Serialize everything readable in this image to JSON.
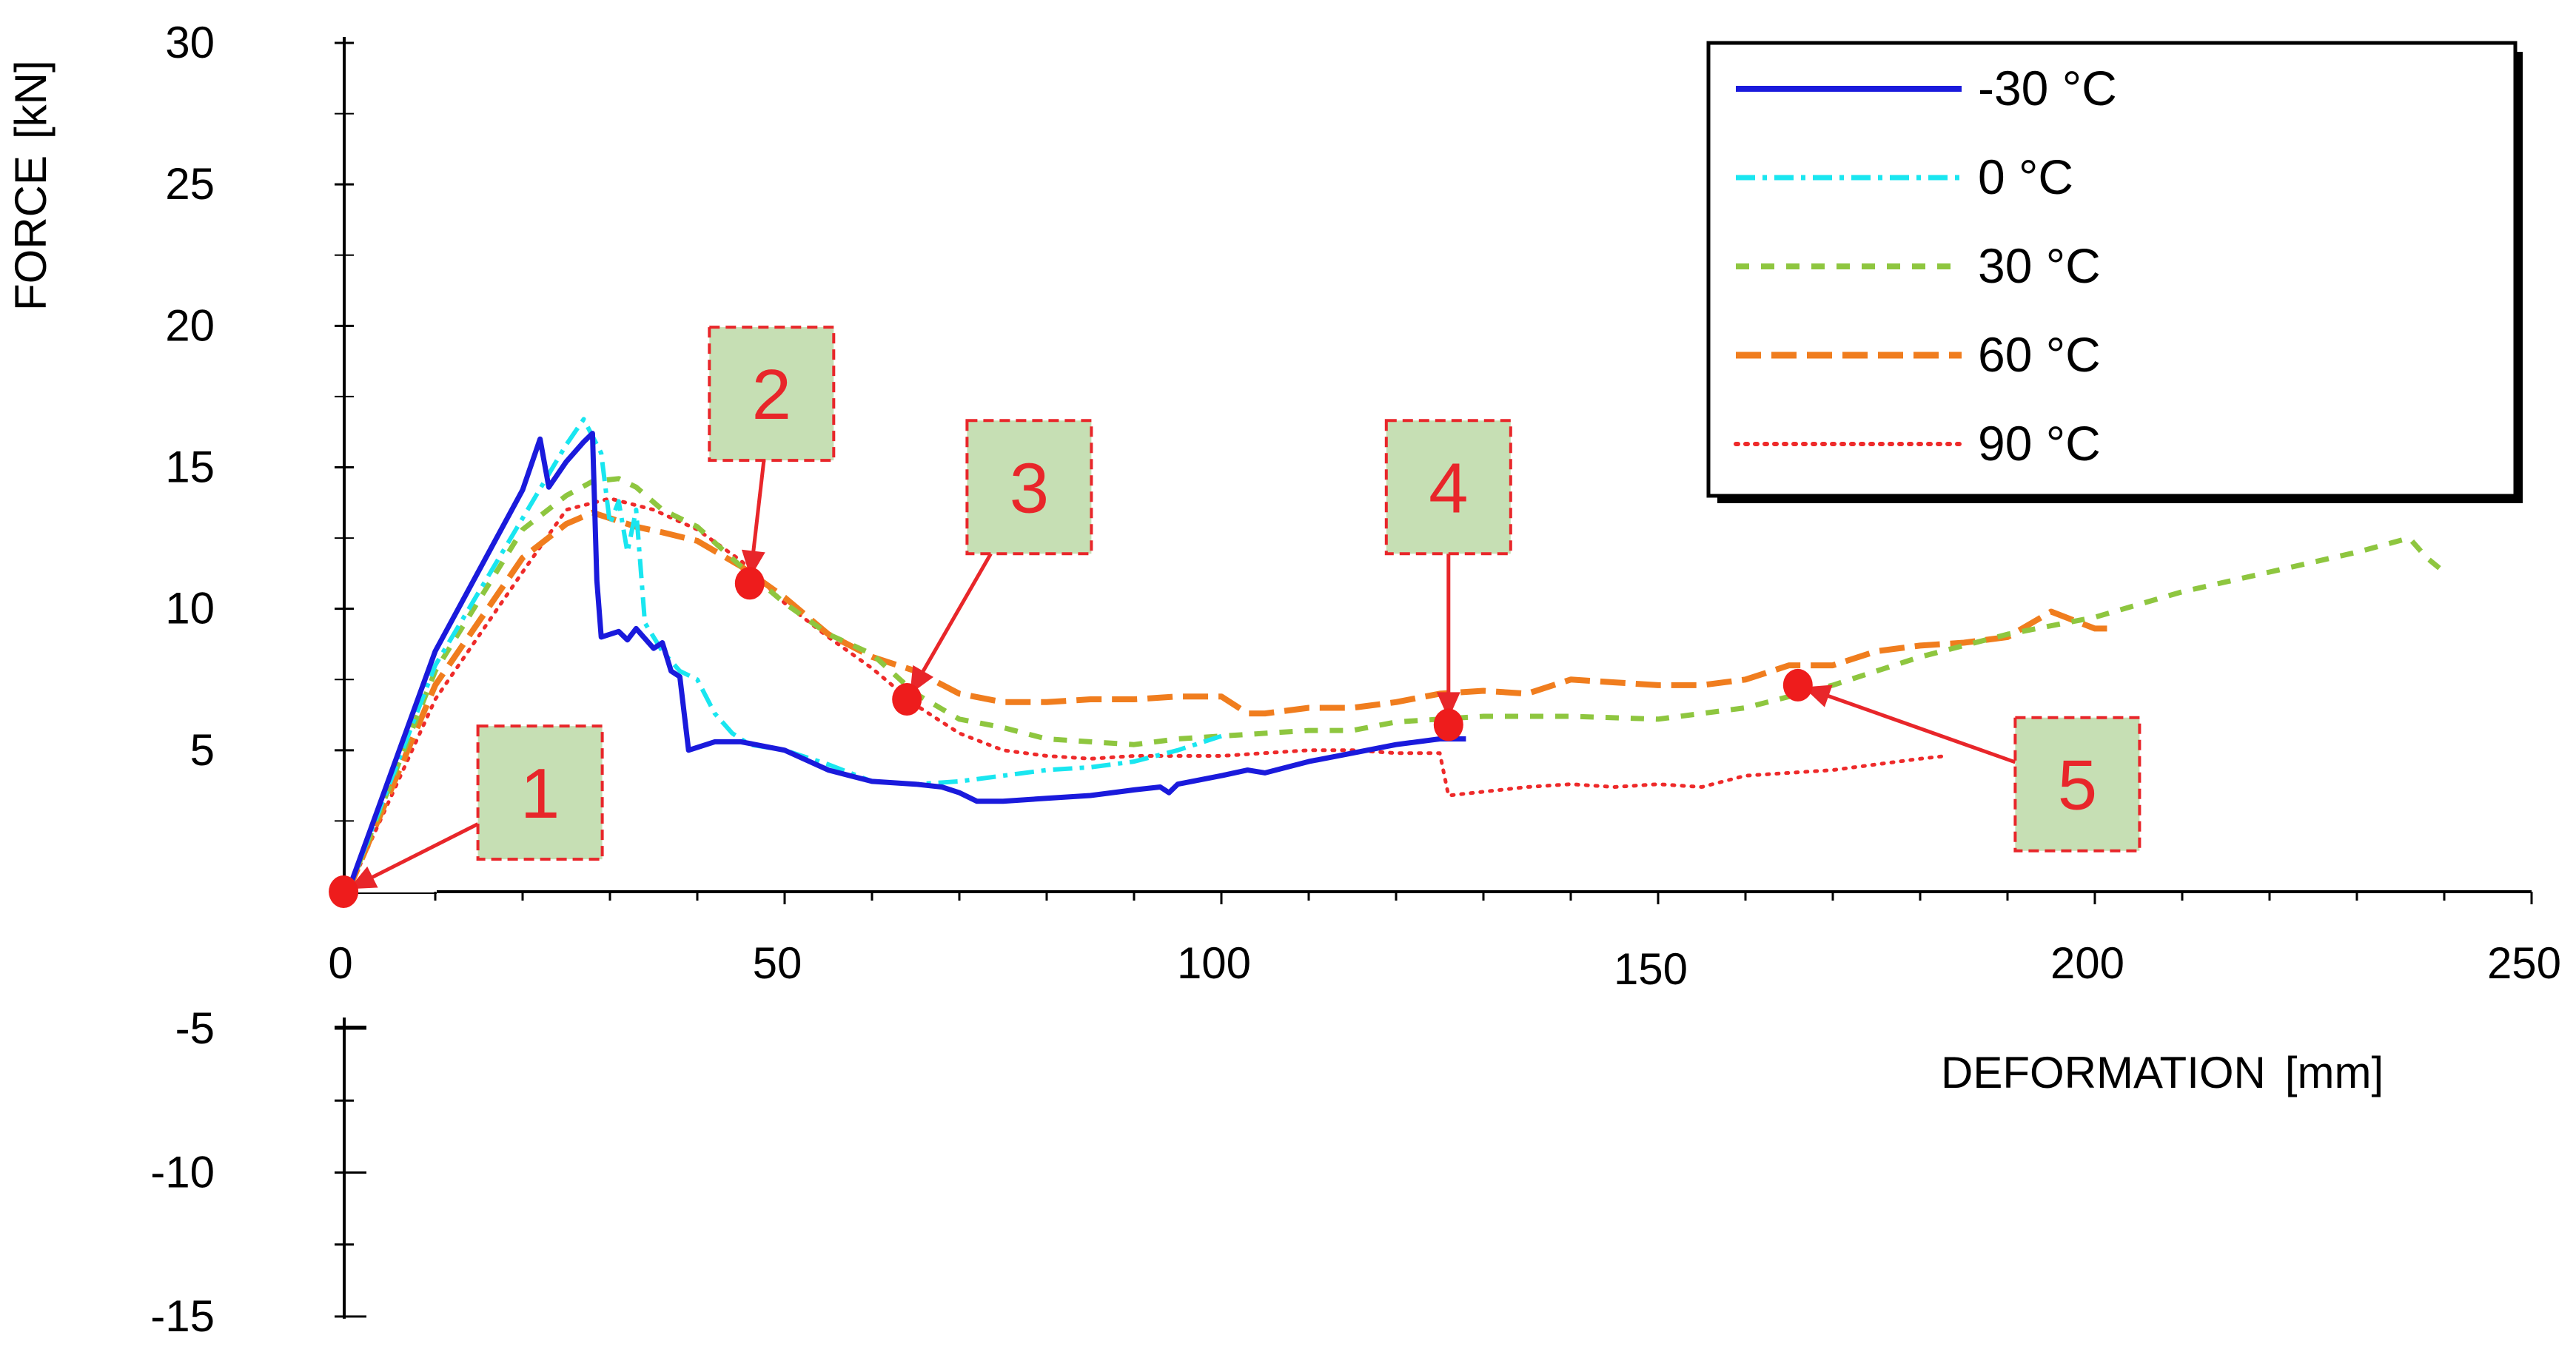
{
  "chart_data": {
    "type": "line",
    "ylabel": "FORCE",
    "ylabel_unit": "[kN]",
    "xlabel": "DEFORMATION",
    "xlabel_unit": "[mm]",
    "xlim": [
      0,
      250
    ],
    "ylim": [
      -15,
      30
    ],
    "x_ticks": [
      {
        "value": 0,
        "label": "0"
      },
      {
        "value": 50,
        "label": "50"
      },
      {
        "value": 100,
        "label": "100"
      },
      {
        "value": 150,
        "label": "150"
      },
      {
        "value": 200,
        "label": "200"
      },
      {
        "value": 250,
        "label": "250"
      }
    ],
    "y_ticks": [
      {
        "value": 30,
        "label": "30"
      },
      {
        "value": 25,
        "label": "25"
      },
      {
        "value": 20,
        "label": "20"
      },
      {
        "value": 15,
        "label": "15"
      },
      {
        "value": 10,
        "label": "10"
      },
      {
        "value": 5,
        "label": "5"
      },
      {
        "value": -5,
        "label": "-5"
      },
      {
        "value": -10,
        "label": "-10"
      },
      {
        "value": -15,
        "label": "-15"
      }
    ],
    "legend_position": "top-right",
    "series": [
      {
        "name": "-30 °C",
        "color": "#1a1adc",
        "dash": "solid",
        "points": [
          [
            0,
            0
          ],
          [
            10,
            8.5
          ],
          [
            20,
            14.2
          ],
          [
            22,
            16
          ],
          [
            23,
            14.3
          ],
          [
            25,
            15.2
          ],
          [
            27,
            15.9
          ],
          [
            28,
            16.2
          ],
          [
            28.5,
            11
          ],
          [
            29,
            9
          ],
          [
            31,
            9.2
          ],
          [
            32,
            8.9
          ],
          [
            33,
            9.3
          ],
          [
            35,
            8.6
          ],
          [
            36,
            8.8
          ],
          [
            37,
            7.8
          ],
          [
            38,
            7.6
          ],
          [
            38.5,
            6.3
          ],
          [
            39,
            5
          ],
          [
            42,
            5.3
          ],
          [
            45,
            5.3
          ],
          [
            50,
            5
          ],
          [
            55,
            4.3
          ],
          [
            60,
            3.9
          ],
          [
            65,
            3.8
          ],
          [
            68,
            3.7
          ],
          [
            70,
            3.5
          ],
          [
            72,
            3.2
          ],
          [
            75,
            3.2
          ],
          [
            80,
            3.3
          ],
          [
            85,
            3.4
          ],
          [
            90,
            3.6
          ],
          [
            93,
            3.7
          ],
          [
            94,
            3.5
          ],
          [
            95,
            3.8
          ],
          [
            100,
            4.1
          ],
          [
            103,
            4.3
          ],
          [
            105,
            4.2
          ],
          [
            110,
            4.6
          ],
          [
            115,
            4.9
          ],
          [
            120,
            5.2
          ],
          [
            125,
            5.4
          ],
          [
            128,
            5.4
          ]
        ]
      },
      {
        "name": "0 °C",
        "color": "#19e6f0",
        "dash": "dashdot",
        "points": [
          [
            0,
            0
          ],
          [
            10,
            8
          ],
          [
            20,
            13.2
          ],
          [
            25,
            15.8
          ],
          [
            27,
            16.7
          ],
          [
            29,
            15.5
          ],
          [
            30,
            13
          ],
          [
            31,
            13.8
          ],
          [
            32,
            12
          ],
          [
            33,
            13.5
          ],
          [
            34,
            9.5
          ],
          [
            36,
            8.5
          ],
          [
            38,
            7.8
          ],
          [
            40,
            7.5
          ],
          [
            42,
            6.3
          ],
          [
            44,
            5.6
          ],
          [
            46,
            5.2
          ],
          [
            50,
            5
          ],
          [
            55,
            4.5
          ],
          [
            60,
            3.9
          ],
          [
            65,
            3.8
          ],
          [
            70,
            3.9
          ],
          [
            75,
            4.1
          ],
          [
            80,
            4.3
          ],
          [
            85,
            4.4
          ],
          [
            90,
            4.6
          ],
          [
            95,
            5
          ],
          [
            100,
            5.5
          ]
        ]
      },
      {
        "name": "30 °C",
        "color": "#8ec63f",
        "dash": "dashed",
        "points": [
          [
            0,
            0
          ],
          [
            10,
            7.8
          ],
          [
            20,
            12.8
          ],
          [
            25,
            14
          ],
          [
            28,
            14.5
          ],
          [
            31,
            14.6
          ],
          [
            33,
            14.3
          ],
          [
            36,
            13.5
          ],
          [
            40,
            12.9
          ],
          [
            45,
            11.5
          ],
          [
            50,
            10.2
          ],
          [
            55,
            9.1
          ],
          [
            60,
            8.4
          ],
          [
            65,
            7
          ],
          [
            70,
            6.1
          ],
          [
            75,
            5.8
          ],
          [
            80,
            5.4
          ],
          [
            85,
            5.3
          ],
          [
            90,
            5.2
          ],
          [
            95,
            5.4
          ],
          [
            100,
            5.5
          ],
          [
            105,
            5.6
          ],
          [
            110,
            5.7
          ],
          [
            115,
            5.7
          ],
          [
            120,
            6
          ],
          [
            125,
            6.1
          ],
          [
            130,
            6.2
          ],
          [
            140,
            6.2
          ],
          [
            150,
            6.1
          ],
          [
            160,
            6.5
          ],
          [
            170,
            7.3
          ],
          [
            180,
            8.3
          ],
          [
            190,
            9.1
          ],
          [
            200,
            9.7
          ],
          [
            210,
            10.6
          ],
          [
            220,
            11.3
          ],
          [
            230,
            12
          ],
          [
            236,
            12.5
          ],
          [
            238,
            11.8
          ],
          [
            240,
            11.3
          ]
        ]
      },
      {
        "name": "60 °C",
        "color": "#f07d1e",
        "dash": "longdash",
        "points": [
          [
            0,
            0
          ],
          [
            10,
            7.3
          ],
          [
            20,
            11.8
          ],
          [
            25,
            13
          ],
          [
            28,
            13.4
          ],
          [
            30,
            13.2
          ],
          [
            33,
            12.9
          ],
          [
            36,
            12.7
          ],
          [
            40,
            12.4
          ],
          [
            45,
            11.5
          ],
          [
            50,
            10.4
          ],
          [
            55,
            9.1
          ],
          [
            60,
            8.3
          ],
          [
            65,
            7.8
          ],
          [
            70,
            7
          ],
          [
            75,
            6.7
          ],
          [
            80,
            6.7
          ],
          [
            85,
            6.8
          ],
          [
            90,
            6.8
          ],
          [
            95,
            6.9
          ],
          [
            100,
            6.9
          ],
          [
            103,
            6.3
          ],
          [
            105,
            6.3
          ],
          [
            110,
            6.5
          ],
          [
            115,
            6.5
          ],
          [
            120,
            6.7
          ],
          [
            125,
            7
          ],
          [
            130,
            7.1
          ],
          [
            135,
            7
          ],
          [
            140,
            7.5
          ],
          [
            145,
            7.4
          ],
          [
            150,
            7.3
          ],
          [
            155,
            7.3
          ],
          [
            160,
            7.5
          ],
          [
            165,
            8
          ],
          [
            170,
            8
          ],
          [
            175,
            8.5
          ],
          [
            180,
            8.7
          ],
          [
            185,
            8.8
          ],
          [
            190,
            9
          ],
          [
            195,
            9.9
          ],
          [
            200,
            9.3
          ],
          [
            202,
            9.3
          ]
        ]
      },
      {
        "name": "90 °C",
        "color": "#ee2a2a",
        "dash": "dotted",
        "points": [
          [
            0,
            0
          ],
          [
            10,
            6.8
          ],
          [
            20,
            11.3
          ],
          [
            25,
            13.5
          ],
          [
            30,
            13.9
          ],
          [
            35,
            13.5
          ],
          [
            40,
            12.8
          ],
          [
            45,
            11.7
          ],
          [
            50,
            10.2
          ],
          [
            55,
            9
          ],
          [
            60,
            7.9
          ],
          [
            65,
            6.6
          ],
          [
            70,
            5.6
          ],
          [
            75,
            5
          ],
          [
            80,
            4.8
          ],
          [
            85,
            4.7
          ],
          [
            90,
            4.8
          ],
          [
            100,
            4.8
          ],
          [
            110,
            5
          ],
          [
            115,
            5
          ],
          [
            120,
            4.9
          ],
          [
            125,
            4.9
          ],
          [
            126,
            3.4
          ],
          [
            135,
            3.7
          ],
          [
            140,
            3.8
          ],
          [
            145,
            3.7
          ],
          [
            150,
            3.8
          ],
          [
            155,
            3.7
          ],
          [
            160,
            4.1
          ],
          [
            170,
            4.3
          ],
          [
            180,
            4.7
          ],
          [
            183,
            4.8
          ]
        ]
      }
    ],
    "markers": [
      {
        "label": "1",
        "point": [
          -0.5,
          0
        ],
        "box": [
          22,
          3.5
        ]
      },
      {
        "label": "2",
        "point": [
          46,
          10.9
        ],
        "box": [
          48.5,
          17.6
        ]
      },
      {
        "label": "3",
        "point": [
          64,
          6.8
        ],
        "box": [
          78,
          14.3
        ]
      },
      {
        "label": "4",
        "point": [
          126,
          5.9
        ],
        "box": [
          126,
          14.3
        ]
      },
      {
        "label": "5",
        "point": [
          166,
          7.3
        ],
        "box": [
          198,
          3.8
        ]
      }
    ]
  }
}
